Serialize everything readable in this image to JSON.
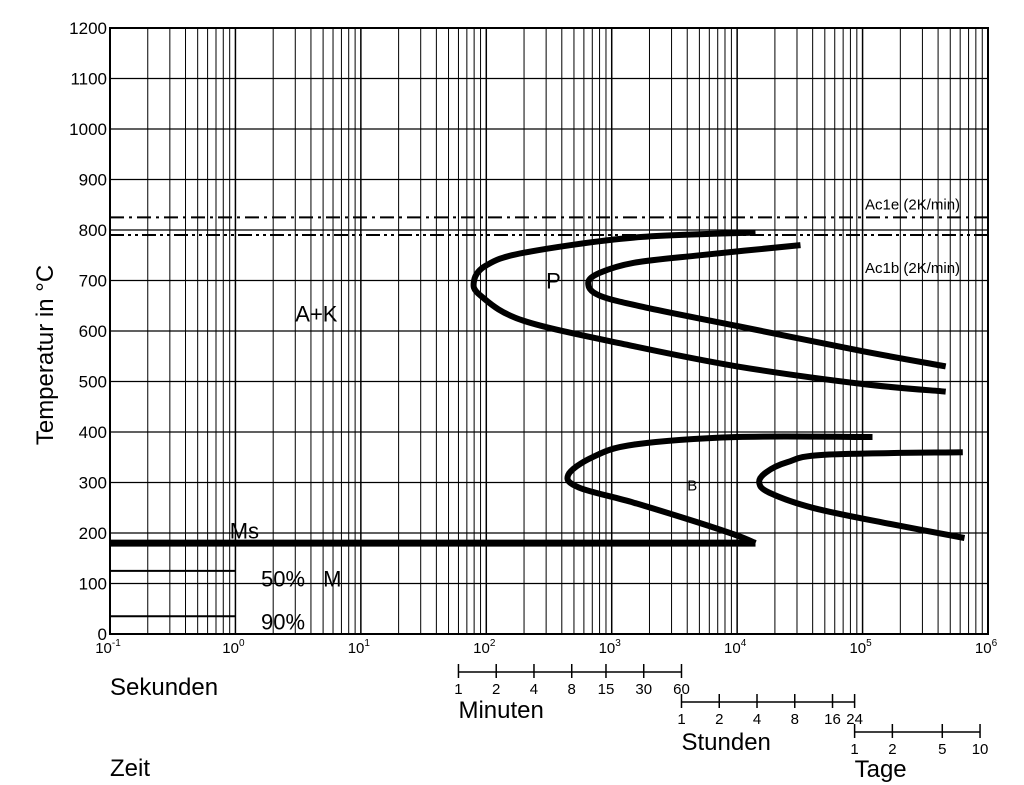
{
  "chart_data": {
    "type": "line",
    "title": "",
    "ylabel": "Temperatur in °C",
    "xlabel": "Zeit",
    "x_scale": "log",
    "xlim": [
      0.1,
      1000000
    ],
    "ylim": [
      0,
      1200
    ],
    "y_ticks": [
      0,
      100,
      200,
      300,
      400,
      500,
      600,
      700,
      800,
      900,
      1000,
      1100,
      1200
    ],
    "x_ticks": [
      {
        "base": "10",
        "exp": "-1",
        "value": 0.1
      },
      {
        "base": "10",
        "exp": "0",
        "value": 1
      },
      {
        "base": "10",
        "exp": "1",
        "value": 10
      },
      {
        "base": "10",
        "exp": "2",
        "value": 100
      },
      {
        "base": "10",
        "exp": "3",
        "value": 1000
      },
      {
        "base": "10",
        "exp": "4",
        "value": 10000
      },
      {
        "base": "10",
        "exp": "5",
        "value": 100000
      },
      {
        "base": "10",
        "exp": "6",
        "value": 1000000
      }
    ],
    "grid": true,
    "reference_lines": [
      {
        "name": "Ac1e (2K/min)",
        "y": 825,
        "style": "dash-dot"
      },
      {
        "name": "Ac1b (2K/min)",
        "y": 790,
        "style": "dash-dot-dot"
      }
    ],
    "series": [
      {
        "name": "",
        "group": "P-start",
        "points": [
          [
            14000,
            795
          ],
          [
            1500,
            785
          ],
          [
            200,
            755
          ],
          [
            100,
            730
          ],
          [
            80,
            700
          ],
          [
            90,
            670
          ],
          [
            200,
            620
          ],
          [
            1500,
            570
          ],
          [
            10000,
            530
          ],
          [
            100000,
            495
          ],
          [
            460000,
            480
          ]
        ]
      },
      {
        "name": "",
        "group": "P-end",
        "points": [
          [
            32000,
            770
          ],
          [
            5000,
            750
          ],
          [
            1500,
            735
          ],
          [
            800,
            715
          ],
          [
            650,
            695
          ],
          [
            800,
            670
          ],
          [
            2000,
            645
          ],
          [
            10000,
            610
          ],
          [
            100000,
            560
          ],
          [
            460000,
            530
          ]
        ]
      },
      {
        "name": "",
        "group": "B-start",
        "points": [
          [
            120000,
            390
          ],
          [
            10000,
            390
          ],
          [
            1500,
            375
          ],
          [
            700,
            350
          ],
          [
            450,
            315
          ],
          [
            550,
            290
          ],
          [
            1500,
            260
          ],
          [
            5000,
            220
          ],
          [
            10000,
            195
          ],
          [
            14000,
            180
          ]
        ]
      },
      {
        "name": "",
        "group": "B-end",
        "points": [
          [
            630000,
            360
          ],
          [
            50000,
            355
          ],
          [
            25000,
            340
          ],
          [
            17000,
            320
          ],
          [
            15000,
            300
          ],
          [
            18000,
            280
          ],
          [
            40000,
            250
          ],
          [
            150000,
            220
          ],
          [
            650000,
            190
          ]
        ]
      },
      {
        "name": "Ms",
        "group": "Ms",
        "points": [
          [
            0.1,
            180
          ],
          [
            14000,
            180
          ]
        ]
      },
      {
        "name": "50%",
        "group": "M50",
        "points": [
          [
            0.1,
            125
          ],
          [
            1,
            125
          ]
        ]
      },
      {
        "name": "90%",
        "group": "M90",
        "points": [
          [
            0.1,
            35
          ],
          [
            1,
            35
          ]
        ]
      }
    ],
    "annotations": [
      {
        "text": "A+K",
        "x": 3,
        "y": 635
      },
      {
        "text": "P",
        "x": 300,
        "y": 700
      },
      {
        "text": "B",
        "x": 4000,
        "y": 300
      },
      {
        "text": "Ms",
        "x": 0.9,
        "y": 205
      },
      {
        "text": "M",
        "x": 5,
        "y": 110
      },
      {
        "text": "50%",
        "x": 1.6,
        "y": 110
      },
      {
        "text": "90%",
        "x": 1.6,
        "y": 25
      }
    ],
    "time_scales": [
      {
        "name": "Minuten",
        "unit_seconds": 60,
        "ticks": [
          "1",
          "2",
          "4",
          "8",
          "15",
          "30",
          "60"
        ]
      },
      {
        "name": "Stunden",
        "unit_seconds": 3600,
        "ticks": [
          "1",
          "2",
          "4",
          "8",
          "16",
          "24"
        ]
      },
      {
        "name": "Tage",
        "unit_seconds": 86400,
        "ticks": [
          "1",
          "2",
          "5",
          "10"
        ]
      }
    ],
    "unit_label_seconds": "Sekunden"
  }
}
